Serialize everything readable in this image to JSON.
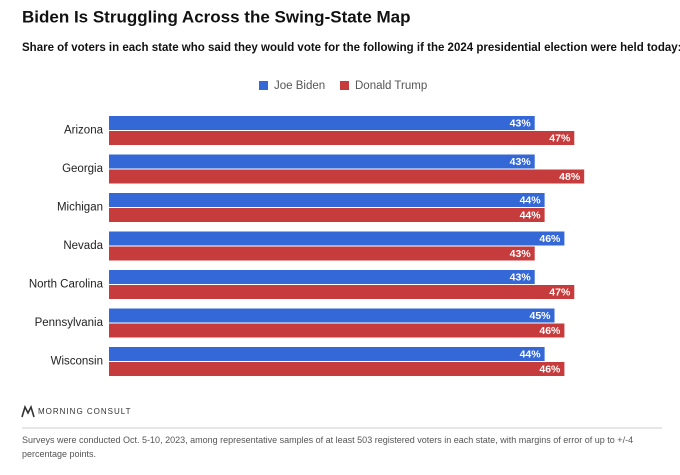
{
  "chart_data": {
    "type": "bar",
    "orientation": "horizontal",
    "title": "Biden Is Struggling Across the Swing-State Map",
    "subtitle": "Share of voters in each state who said they would vote for the following if the 2024 presidential election were held today:",
    "categories": [
      "Arizona",
      "Georgia",
      "Michigan",
      "Nevada",
      "North Carolina",
      "Pennsylvania",
      "Wisconsin"
    ],
    "series": [
      {
        "name": "Joe Biden",
        "color": "#3468d6",
        "values": [
          43,
          43,
          44,
          46,
          43,
          45,
          44
        ],
        "value_labels": [
          "43%",
          "43%",
          "44%",
          "46%",
          "43%",
          "45%",
          "44%"
        ]
      },
      {
        "name": "Donald Trump",
        "color": "#c63b3b",
        "values": [
          47,
          48,
          44,
          43,
          47,
          46,
          46
        ],
        "value_labels": [
          "47%",
          "48%",
          "44%",
          "43%",
          "47%",
          "46%",
          "46%"
        ]
      }
    ],
    "source": "MORNING CONSULT",
    "note": "Surveys were conducted Oct. 5-10, 2023, among representative samples of at least 503 registered voters in each state, with margins of error of up to +/-4 percentage points."
  }
}
